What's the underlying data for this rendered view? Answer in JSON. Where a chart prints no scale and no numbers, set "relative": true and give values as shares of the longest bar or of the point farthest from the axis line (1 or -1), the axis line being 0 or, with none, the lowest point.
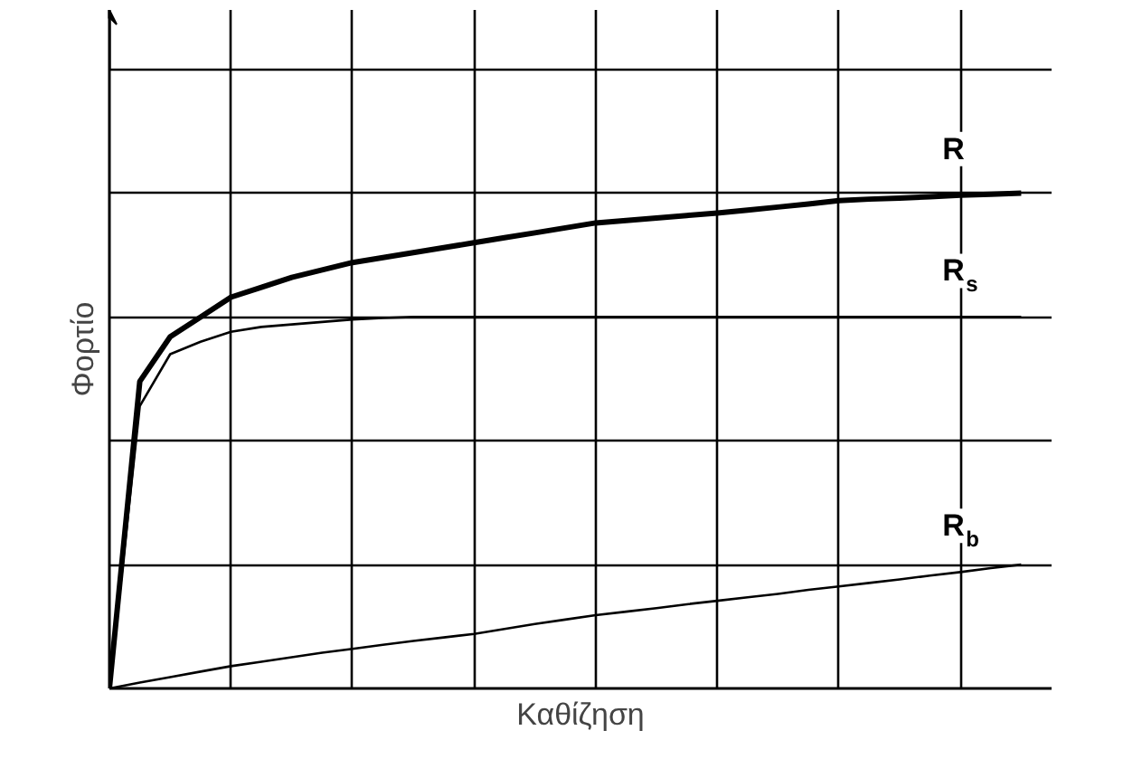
{
  "chart_data": {
    "type": "line",
    "relative": true,
    "xlabel": "Καθίζηση",
    "ylabel": "Φορτίο",
    "grid": true,
    "marker": "none",
    "line_style": "solid",
    "categories": [
      null,
      null,
      null,
      null,
      null,
      null,
      null,
      null,
      null,
      null,
      null,
      null,
      null,
      null,
      null,
      null,
      null,
      null,
      null,
      null,
      null,
      null,
      null,
      null,
      null,
      null,
      null,
      null,
      null,
      null,
      null
    ],
    "series": [
      {
        "name": "R",
        "color": "#000000",
        "values": [
          0,
          0.62,
          0.71,
          0.75,
          0.79,
          0.81,
          0.83,
          0.845,
          0.86,
          0.87,
          0.88,
          0.89,
          0.9,
          0.91,
          0.92,
          0.93,
          0.94,
          0.945,
          0.95,
          0.955,
          0.96,
          0.966,
          0.972,
          0.978,
          0.985,
          0.988,
          0.99,
          0.993,
          0.996,
          0.998,
          1.0
        ]
      },
      {
        "name": "R$_{s}$",
        "color": "#000000",
        "values": [
          0,
          0.57,
          0.675,
          0.7,
          0.72,
          0.73,
          0.735,
          0.74,
          0.745,
          0.748,
          0.75,
          0.75,
          0.75,
          0.75,
          0.75,
          0.75,
          0.75,
          0.75,
          0.75,
          0.75,
          0.75,
          0.75,
          0.75,
          0.75,
          0.75,
          0.75,
          0.75,
          0.75,
          0.75,
          0.75,
          0.75
        ]
      },
      {
        "name": "R$_{b}$",
        "color": "#000000",
        "values": [
          0,
          0.012,
          0.023,
          0.034,
          0.045,
          0.054,
          0.063,
          0.072,
          0.08,
          0.088,
          0.096,
          0.103,
          0.11,
          0.12,
          0.13,
          0.139,
          0.148,
          0.155,
          0.162,
          0.17,
          0.177,
          0.184,
          0.191,
          0.199,
          0.206,
          0.213,
          0.22,
          0.228,
          0.235,
          0.243,
          0.25
        ]
      }
    ]
  }
}
